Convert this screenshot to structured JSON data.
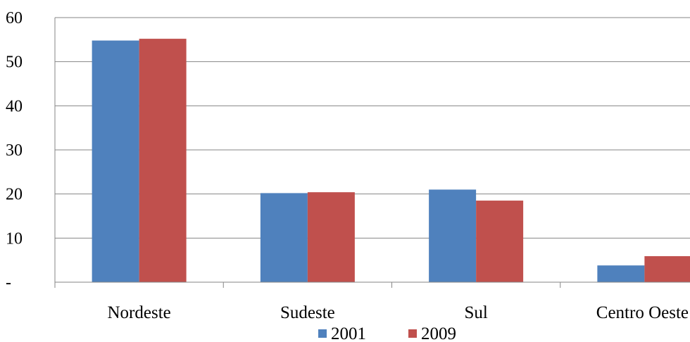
{
  "chart_data": {
    "type": "bar",
    "categories": [
      "Nordeste",
      "Sudeste",
      "Sul",
      "Centro Oeste"
    ],
    "series": [
      {
        "name": "2001",
        "values": [
          54.8,
          20.2,
          21.0,
          3.8
        ],
        "color": "#4F81BD"
      },
      {
        "name": "2009",
        "values": [
          55.2,
          20.4,
          18.5,
          5.9
        ],
        "color": "#C0504D"
      }
    ],
    "ylim": [
      0,
      60
    ],
    "yticks": [
      0,
      10,
      20,
      30,
      40,
      50,
      60
    ],
    "ytick_labels": [
      "-",
      "10",
      "20",
      "30",
      "40",
      "50",
      "60"
    ],
    "grid": true,
    "legend_position": "bottom"
  }
}
